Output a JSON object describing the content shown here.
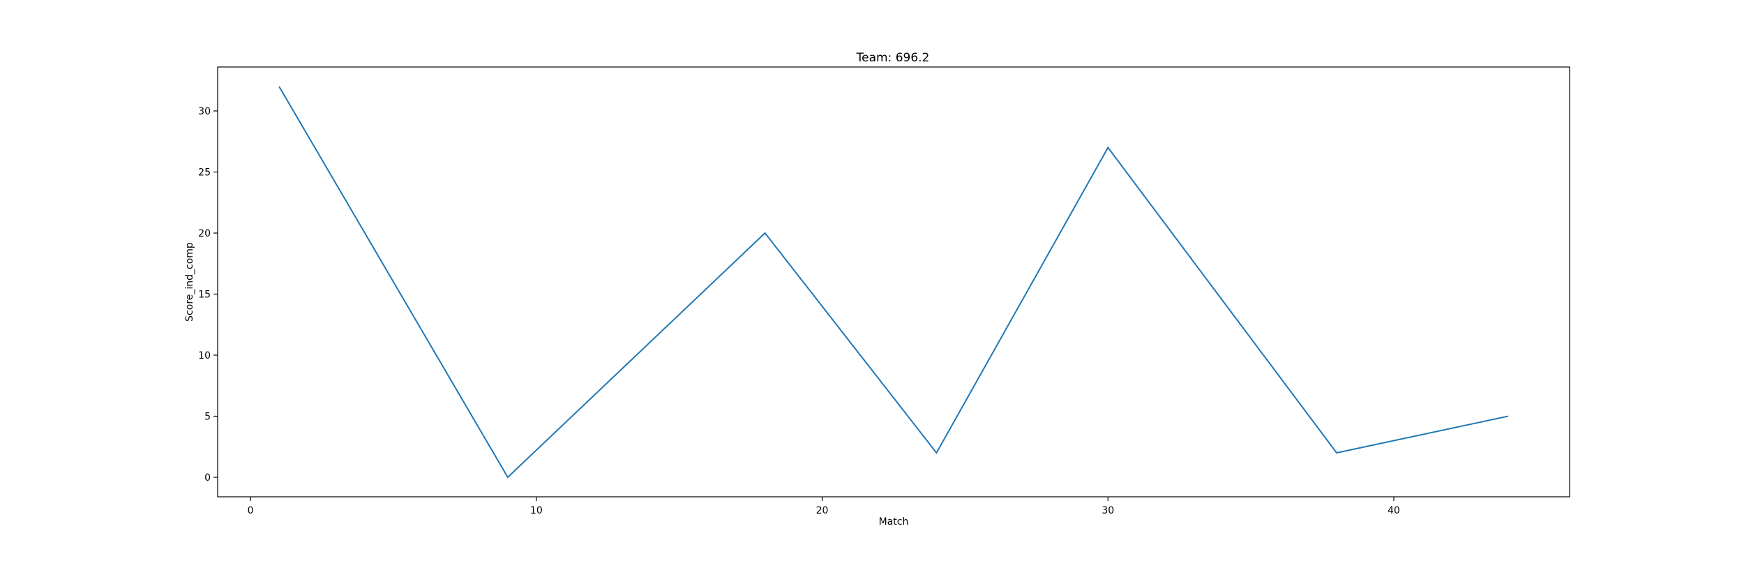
{
  "chart_data": {
    "type": "line",
    "title": "Team: 696.2",
    "xlabel": "Match",
    "ylabel": "Score_ind_comp",
    "xlim": [
      -1.15,
      46.15
    ],
    "ylim": [
      -1.6,
      33.6
    ],
    "xticks": [
      0,
      10,
      20,
      30,
      40
    ],
    "yticks": [
      0,
      5,
      10,
      15,
      20,
      25,
      30
    ],
    "grid": false,
    "series": [
      {
        "color": "#1f77b4",
        "x": [
          1,
          9,
          18,
          24,
          30,
          38,
          44
        ],
        "y": [
          32,
          0,
          20,
          2,
          27,
          2,
          5
        ]
      }
    ]
  }
}
